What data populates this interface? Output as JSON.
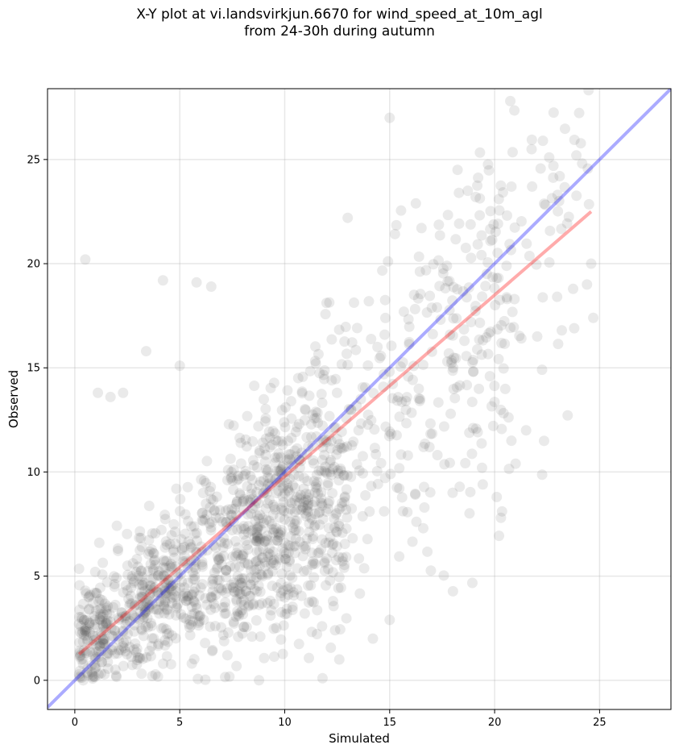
{
  "chart_data": {
    "type": "scatter",
    "title_line1": "X-Y plot at vi.landsvirkjun.6670 for wind_speed_at_10m_agl",
    "title_line2": "from 24-30h during autumn",
    "xlabel": "Simulated",
    "ylabel": "Observed",
    "xlim": [
      -1.3,
      28.4
    ],
    "ylim": [
      -1.4,
      28.4
    ],
    "xticks": [
      0,
      5,
      10,
      15,
      20,
      25
    ],
    "yticks": [
      0,
      5,
      10,
      15,
      20,
      25
    ],
    "grid": true,
    "point_color": "#555555",
    "point_opacity": 0.12,
    "identity_line": {
      "color": "#0000ff",
      "opacity": 0.33,
      "x": [
        -1.3,
        28.4
      ],
      "y": [
        -1.3,
        28.4
      ]
    },
    "fit_line": {
      "color": "#ff0000",
      "opacity": 0.33,
      "x": [
        0.2,
        24.6
      ],
      "y": [
        1.25,
        22.5
      ]
    },
    "notable_points": [
      {
        "x": 15.0,
        "y": 27.0
      },
      {
        "x": 22.3,
        "y": 25.9
      },
      {
        "x": 22.6,
        "y": 25.1
      },
      {
        "x": 22.8,
        "y": 24.7
      },
      {
        "x": 23.1,
        "y": 24.2
      },
      {
        "x": 23.0,
        "y": 23.3
      },
      {
        "x": 18.3,
        "y": 23.4
      },
      {
        "x": 20.8,
        "y": 23.7
      },
      {
        "x": 19.1,
        "y": 23.2
      },
      {
        "x": 20.2,
        "y": 23.1
      },
      {
        "x": 13.0,
        "y": 22.2
      },
      {
        "x": 0.5,
        "y": 20.2
      },
      {
        "x": 4.2,
        "y": 19.2
      },
      {
        "x": 5.8,
        "y": 19.1
      },
      {
        "x": 6.5,
        "y": 18.9
      },
      {
        "x": 24.6,
        "y": 20.0
      },
      {
        "x": 24.7,
        "y": 17.4
      },
      {
        "x": 24.4,
        "y": 19.0
      },
      {
        "x": 23.2,
        "y": 16.8
      },
      {
        "x": 21.5,
        "y": 12.0
      },
      {
        "x": 21.0,
        "y": 10.4
      },
      {
        "x": 20.8,
        "y": 11.5
      },
      {
        "x": 20.1,
        "y": 8.8
      },
      {
        "x": 20.3,
        "y": 7.8
      },
      {
        "x": 19.4,
        "y": 10.2
      },
      {
        "x": 18.0,
        "y": 9.0
      },
      {
        "x": 16.6,
        "y": 7.3
      },
      {
        "x": 15.0,
        "y": 2.9
      },
      {
        "x": 14.2,
        "y": 2.0
      },
      {
        "x": 12.3,
        "y": 3.8
      },
      {
        "x": 11.8,
        "y": 0.1
      },
      {
        "x": 12.6,
        "y": 1.0
      },
      {
        "x": 12.4,
        "y": 2.4
      },
      {
        "x": 3.4,
        "y": 15.8
      },
      {
        "x": 5.0,
        "y": 15.1
      },
      {
        "x": 1.1,
        "y": 13.8
      },
      {
        "x": 2.3,
        "y": 13.8
      },
      {
        "x": 1.7,
        "y": 13.6
      },
      {
        "x": 0.5,
        "y": 4.3
      },
      {
        "x": 0.2,
        "y": 2.7
      },
      {
        "x": 0.4,
        "y": 0.0
      }
    ],
    "cloud_regions": [
      {
        "count": 900,
        "x_range": [
          0.2,
          13.0
        ],
        "trend": [
          0.52,
          1.6
        ],
        "spread": 2.4
      },
      {
        "count": 420,
        "x_range": [
          7.5,
          21.0
        ],
        "trend": [
          0.78,
          1.2
        ],
        "spread": 3.3
      },
      {
        "count": 90,
        "x_range": [
          18.0,
          24.5
        ],
        "trend": [
          0.85,
          1.5
        ],
        "spread": 2.8
      },
      {
        "count": 140,
        "x_range": [
          3.0,
          12.0
        ],
        "trend": [
          0.95,
          1.8
        ],
        "spread": 2.0
      }
    ]
  }
}
